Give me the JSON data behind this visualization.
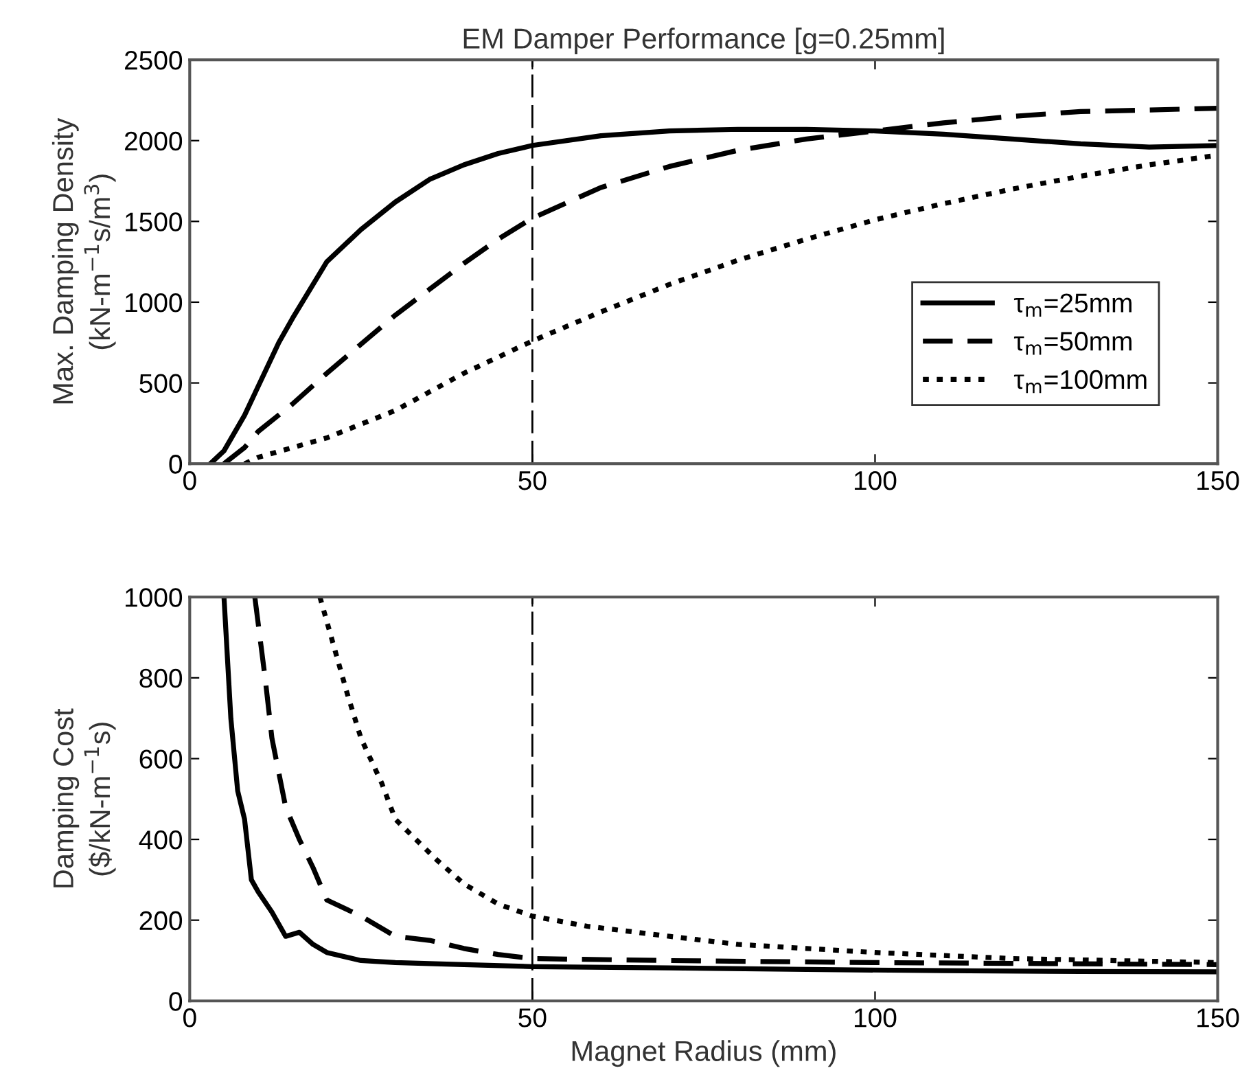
{
  "chart_data": [
    {
      "type": "line",
      "title": "EM Damper Performance [g=0.25mm]",
      "ylabel": "Max. Damping Density\n(kN-m$^{−1}$s/m$^{3}$)",
      "xlim": [
        0,
        150
      ],
      "ylim": [
        0,
        2500
      ],
      "xticks": [
        0,
        50,
        100,
        150
      ],
      "yticks": [
        0,
        500,
        1000,
        1500,
        2000,
        2500
      ],
      "grid": false,
      "legend": "lower right",
      "ref_lines": [
        {
          "axis": "x",
          "value": 50,
          "color": "#000000",
          "line_style": "dashed"
        }
      ],
      "series": [
        {
          "name": "τ$_{m}$=25mm",
          "color": "#000000",
          "line_style": "solid",
          "x": [
            3,
            5,
            8,
            10,
            13,
            15,
            20,
            25,
            30,
            35,
            40,
            45,
            50,
            60,
            70,
            80,
            90,
            100,
            110,
            120,
            130,
            140,
            150
          ],
          "values": [
            0,
            80,
            300,
            480,
            750,
            900,
            1250,
            1450,
            1620,
            1760,
            1850,
            1920,
            1970,
            2030,
            2060,
            2070,
            2070,
            2060,
            2040,
            2010,
            1980,
            1960,
            1970
          ]
        },
        {
          "name": "τ$_{m}$=50mm",
          "color": "#000000",
          "line_style": "dashed",
          "x": [
            5,
            8,
            10,
            15,
            20,
            25,
            30,
            35,
            40,
            45,
            50,
            60,
            70,
            80,
            90,
            100,
            110,
            120,
            130,
            140,
            150
          ],
          "values": [
            0,
            100,
            200,
            370,
            560,
            740,
            920,
            1080,
            1240,
            1390,
            1520,
            1710,
            1840,
            1940,
            2010,
            2060,
            2110,
            2150,
            2180,
            2190,
            2200
          ]
        },
        {
          "name": "τ$_{m}$=100mm",
          "color": "#000000",
          "line_style": "dotted",
          "x": [
            8,
            10,
            20,
            30,
            40,
            50,
            60,
            70,
            80,
            90,
            100,
            110,
            120,
            130,
            140,
            150
          ],
          "values": [
            0,
            40,
            160,
            330,
            560,
            760,
            940,
            1110,
            1260,
            1390,
            1510,
            1610,
            1700,
            1780,
            1850,
            1910
          ]
        }
      ]
    },
    {
      "type": "line",
      "xlabel": "Magnet Radius (mm)",
      "ylabel": "Damping Cost\n($/kN-m$^{−1}$s)",
      "xlim": [
        0,
        150
      ],
      "ylim": [
        0,
        1000
      ],
      "xticks": [
        0,
        50,
        100,
        150
      ],
      "yticks": [
        0,
        200,
        400,
        600,
        800,
        1000
      ],
      "grid": false,
      "ref_lines": [
        {
          "axis": "x",
          "value": 50,
          "color": "#000000",
          "line_style": "dashed"
        }
      ],
      "series": [
        {
          "color": "#000000",
          "line_style": "solid",
          "x": [
            5,
            6,
            7,
            8,
            9,
            10,
            12,
            14,
            16,
            18,
            20,
            25,
            30,
            40,
            50,
            70,
            90,
            110,
            130,
            150
          ],
          "values": [
            1000,
            700,
            520,
            450,
            300,
            270,
            220,
            160,
            170,
            140,
            120,
            100,
            95,
            90,
            85,
            82,
            78,
            75,
            73,
            72
          ]
        },
        {
          "color": "#000000",
          "line_style": "dashed",
          "x": [
            9.5,
            11,
            12,
            14,
            16,
            18,
            20,
            25,
            30,
            35,
            40,
            45,
            50,
            70,
            100,
            150
          ],
          "values": [
            1000,
            800,
            650,
            480,
            400,
            330,
            250,
            210,
            160,
            150,
            130,
            115,
            105,
            100,
            95,
            90
          ]
        },
        {
          "color": "#000000",
          "line_style": "dotted",
          "x": [
            19,
            21,
            23,
            25,
            28,
            30,
            33,
            36,
            40,
            45,
            50,
            58,
            70,
            80,
            90,
            100,
            120,
            150
          ],
          "values": [
            1000,
            880,
            760,
            650,
            540,
            450,
            400,
            350,
            290,
            240,
            210,
            185,
            160,
            140,
            130,
            120,
            105,
            95
          ]
        }
      ]
    }
  ]
}
